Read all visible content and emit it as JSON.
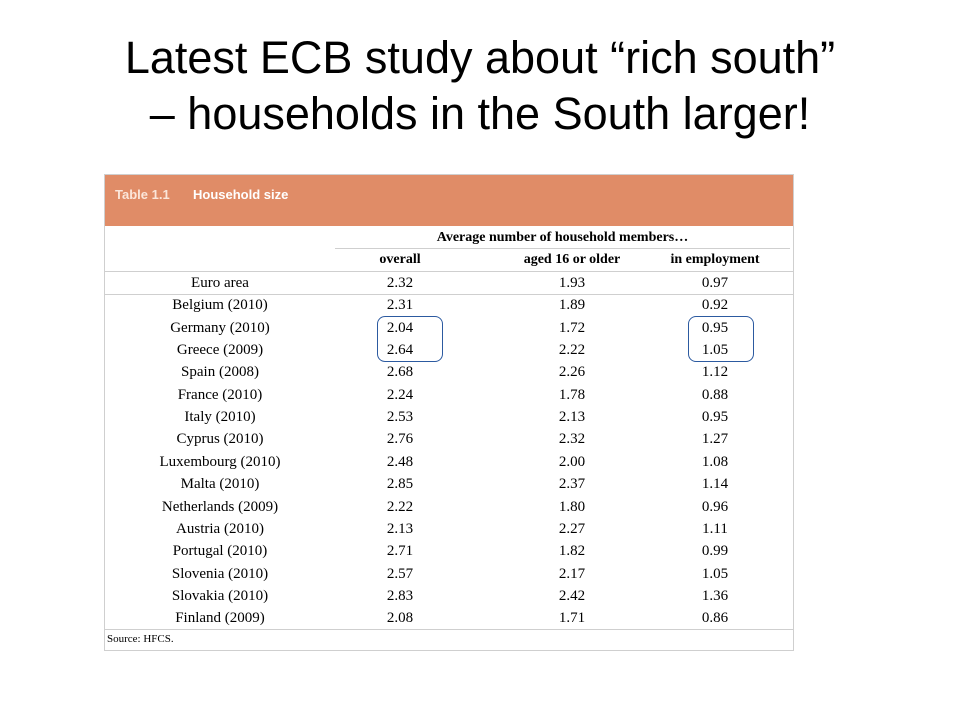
{
  "slide": {
    "title_line1": "Latest ECB study about “rich south”",
    "title_line2": "– households in the South larger!"
  },
  "table": {
    "number": "Table 1.1",
    "title": "Household size",
    "group_header": "Average number of household members…",
    "columns": [
      "overall",
      "aged 16 or older",
      "in employment"
    ],
    "rows": [
      {
        "country": "Euro area",
        "overall": "2.32",
        "aged16": "1.93",
        "employment": "0.97"
      },
      {
        "country": "Belgium (2010)",
        "overall": "2.31",
        "aged16": "1.89",
        "employment": "0.92"
      },
      {
        "country": "Germany (2010)",
        "overall": "2.04",
        "aged16": "1.72",
        "employment": "0.95"
      },
      {
        "country": "Greece (2009)",
        "overall": "2.64",
        "aged16": "2.22",
        "employment": "1.05"
      },
      {
        "country": "Spain (2008)",
        "overall": "2.68",
        "aged16": "2.26",
        "employment": "1.12"
      },
      {
        "country": "France (2010)",
        "overall": "2.24",
        "aged16": "1.78",
        "employment": "0.88"
      },
      {
        "country": "Italy (2010)",
        "overall": "2.53",
        "aged16": "2.13",
        "employment": "0.95"
      },
      {
        "country": "Cyprus (2010)",
        "overall": "2.76",
        "aged16": "2.32",
        "employment": "1.27"
      },
      {
        "country": "Luxembourg (2010)",
        "overall": "2.48",
        "aged16": "2.00",
        "employment": "1.08"
      },
      {
        "country": "Malta (2010)",
        "overall": "2.85",
        "aged16": "2.37",
        "employment": "1.14"
      },
      {
        "country": "Netherlands (2009)",
        "overall": "2.22",
        "aged16": "1.80",
        "employment": "0.96"
      },
      {
        "country": "Austria (2010)",
        "overall": "2.13",
        "aged16": "2.27",
        "employment": "1.11"
      },
      {
        "country": "Portugal (2010)",
        "overall": "2.71",
        "aged16": "1.82",
        "employment": "0.99"
      },
      {
        "country": "Slovenia (2010)",
        "overall": "2.57",
        "aged16": "2.17",
        "employment": "1.05"
      },
      {
        "country": "Slovakia (2010)",
        "overall": "2.83",
        "aged16": "2.42",
        "employment": "1.36"
      },
      {
        "country": "Finland (2009)",
        "overall": "2.08",
        "aged16": "1.71",
        "employment": "0.86"
      }
    ],
    "source": "Source: HFCS."
  },
  "colors": {
    "header_band": "#e08c67",
    "highlight": "#2c5aa0"
  }
}
